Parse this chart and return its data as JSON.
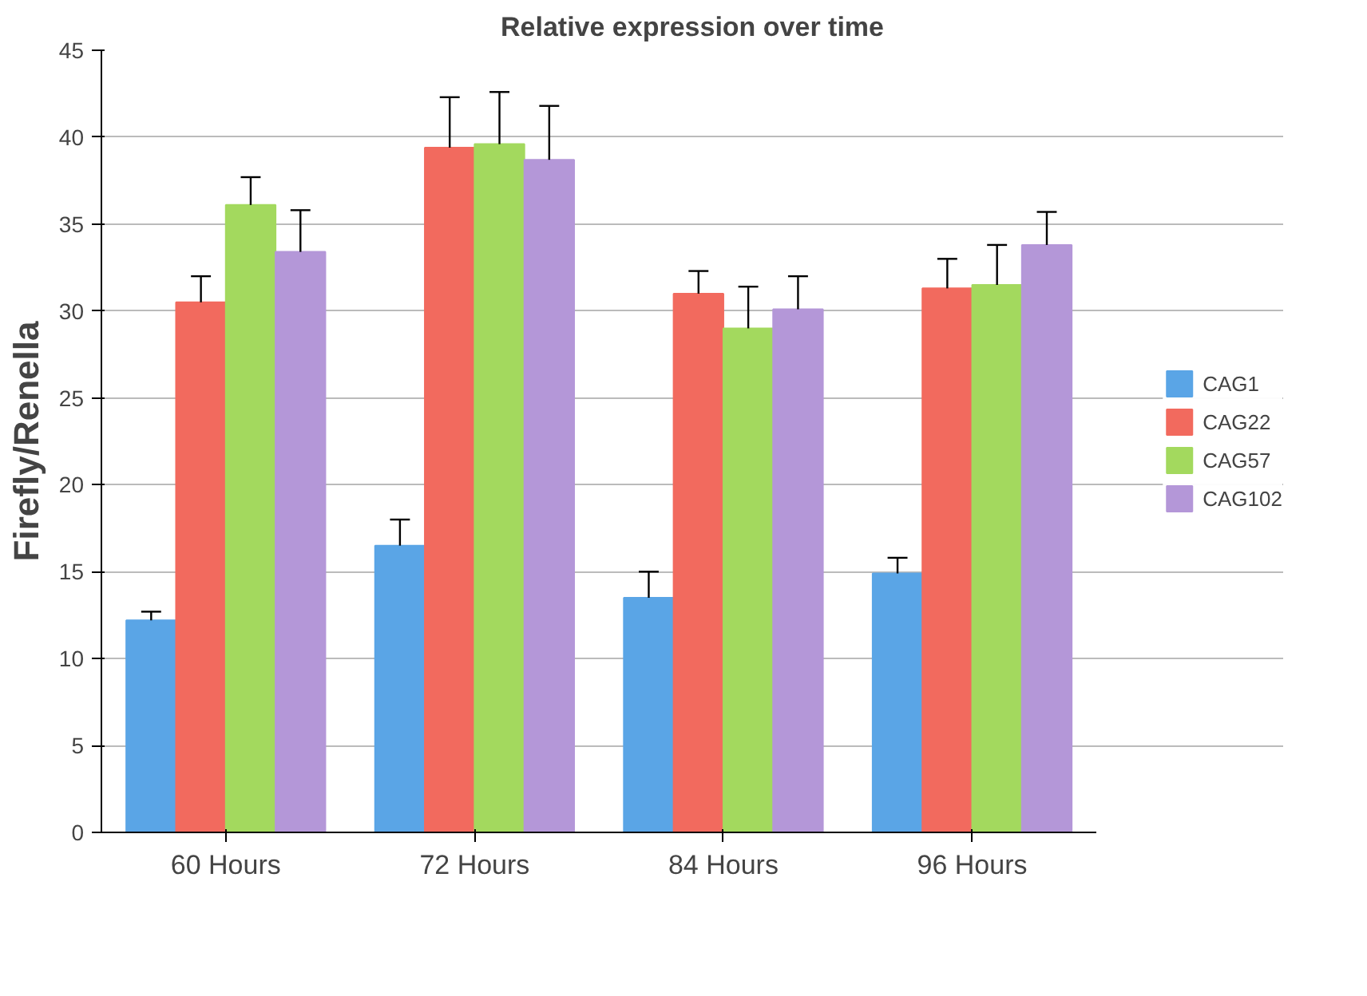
{
  "chart_data": {
    "type": "bar",
    "title": "Relative expression over time",
    "ylabel": "Firefly/Renella",
    "categories": [
      "60 Hours",
      "72 Hours",
      "84 Hours",
      "96 Hours"
    ],
    "series": [
      {
        "name": "CAG1",
        "color": "#5aa5e6",
        "values": [
          12.2,
          16.5,
          13.5,
          14.9
        ],
        "errors": [
          [
            12.2,
            12.7
          ],
          [
            16.5,
            18.0
          ],
          [
            13.5,
            15.0
          ],
          [
            14.9,
            15.8
          ]
        ]
      },
      {
        "name": "CAG22",
        "color": "#f26a5e",
        "values": [
          30.5,
          39.4,
          31.0,
          31.3
        ],
        "errors": [
          [
            30.5,
            32.0
          ],
          [
            39.4,
            42.3
          ],
          [
            31.0,
            32.3
          ],
          [
            31.3,
            33.0
          ]
        ]
      },
      {
        "name": "CAG57",
        "color": "#a3d95e",
        "values": [
          36.1,
          39.6,
          29.0,
          31.5
        ],
        "errors": [
          [
            36.1,
            37.7
          ],
          [
            39.6,
            42.6
          ],
          [
            29.0,
            31.4
          ],
          [
            31.5,
            33.8
          ]
        ]
      },
      {
        "name": "CAG102",
        "color": "#b497d8",
        "values": [
          33.4,
          38.7,
          30.1,
          33.8
        ],
        "errors": [
          [
            33.4,
            35.8
          ],
          [
            38.7,
            41.8
          ],
          [
            30.1,
            32.0
          ],
          [
            33.8,
            35.7
          ]
        ]
      }
    ],
    "ylim": [
      0,
      45
    ],
    "yticks": [
      0,
      5,
      10,
      15,
      20,
      25,
      30,
      35,
      40,
      45
    ],
    "grid": "y",
    "legend": "right"
  }
}
